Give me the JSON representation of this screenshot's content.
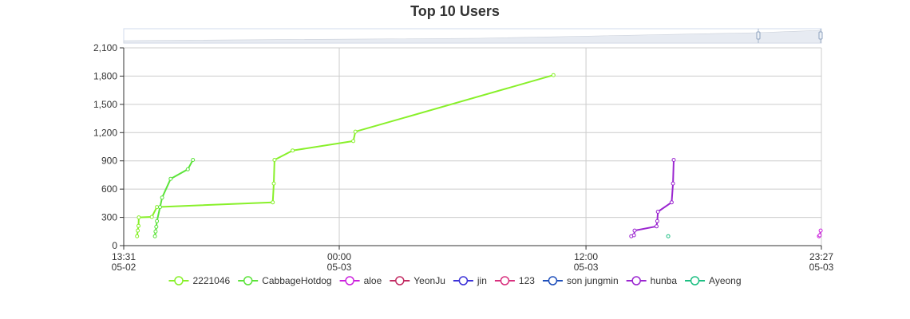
{
  "chart_data": {
    "type": "line",
    "title": "Top 10 Users",
    "xlabel": "",
    "ylabel": "",
    "x_axis": {
      "type": "time",
      "range": [
        "05-02 13:31",
        "05-03 23:27"
      ],
      "ticks": [
        {
          "at": "05-02 13:31",
          "time": "13:31",
          "date": "05-02"
        },
        {
          "at": "05-03 00:00",
          "time": "00:00",
          "date": "05-03"
        },
        {
          "at": "05-03 12:00",
          "time": "12:00",
          "date": "05-03"
        },
        {
          "at": "05-03 23:27",
          "time": "23:27",
          "date": "05-03"
        }
      ]
    },
    "y_axis": {
      "range": [
        0,
        2100
      ],
      "ticks": [
        {
          "value": 0,
          "label": "0"
        },
        {
          "value": 300,
          "label": "300"
        },
        {
          "value": 600,
          "label": "600"
        },
        {
          "value": 900,
          "label": "900"
        },
        {
          "value": 1200,
          "label": "1,200"
        },
        {
          "value": 1500,
          "label": "1,500"
        },
        {
          "value": 1800,
          "label": "1,800"
        },
        {
          "value": 2100,
          "label": "2,100"
        }
      ]
    },
    "grid": true,
    "legend": "bottom",
    "data_zoom": true,
    "series": [
      {
        "name": "2221046",
        "color": "#88f02a",
        "points": [
          [
            "05-02 14:10",
            100
          ],
          [
            "05-02 14:12",
            160
          ],
          [
            "05-02 14:14",
            210
          ],
          [
            "05-02 14:15",
            300
          ],
          [
            "05-02 14:53",
            305
          ],
          [
            "05-02 15:08",
            410
          ],
          [
            "05-02 20:46",
            460
          ],
          [
            "05-02 20:49",
            660
          ],
          [
            "05-02 20:51",
            910
          ],
          [
            "05-02 21:44",
            1010
          ],
          [
            "05-03 00:41",
            1110
          ],
          [
            "05-03 00:47",
            1210
          ],
          [
            "05-03 10:25",
            1810
          ]
        ]
      },
      {
        "name": "CabbageHotdog",
        "color": "#5be33a",
        "points": [
          [
            "05-02 15:02",
            100
          ],
          [
            "05-02 15:04",
            150
          ],
          [
            "05-02 15:06",
            200
          ],
          [
            "05-02 15:08",
            260
          ],
          [
            "05-02 15:17",
            410
          ],
          [
            "05-02 15:23",
            510
          ],
          [
            "05-02 15:48",
            710
          ],
          [
            "05-02 16:38",
            810
          ],
          [
            "05-02 16:53",
            910
          ]
        ]
      },
      {
        "name": "aloe",
        "color": "#cc22dd",
        "points": [
          [
            "05-03 23:20",
            100
          ],
          [
            "05-03 23:22",
            110
          ],
          [
            "05-03 23:25",
            160
          ]
        ]
      },
      {
        "name": "YeonJu",
        "color": "#c22c63",
        "points": []
      },
      {
        "name": "jin",
        "color": "#3c32d8",
        "points": []
      },
      {
        "name": "123",
        "color": "#d8317e",
        "points": []
      },
      {
        "name": "son jungmin",
        "color": "#2050bb",
        "points": []
      },
      {
        "name": "hunba",
        "color": "#9b26d0",
        "points": [
          [
            "05-03 14:12",
            100
          ],
          [
            "05-03 14:20",
            110
          ],
          [
            "05-03 14:22",
            160
          ],
          [
            "05-03 15:26",
            205
          ],
          [
            "05-03 15:28",
            260
          ],
          [
            "05-03 15:30",
            360
          ],
          [
            "05-03 16:10",
            460
          ],
          [
            "05-03 16:14",
            660
          ],
          [
            "05-03 16:16",
            910
          ]
        ]
      },
      {
        "name": "Ayeong",
        "color": "#1ebf83",
        "points": [
          [
            "05-03 16:00",
            100
          ]
        ]
      }
    ]
  }
}
